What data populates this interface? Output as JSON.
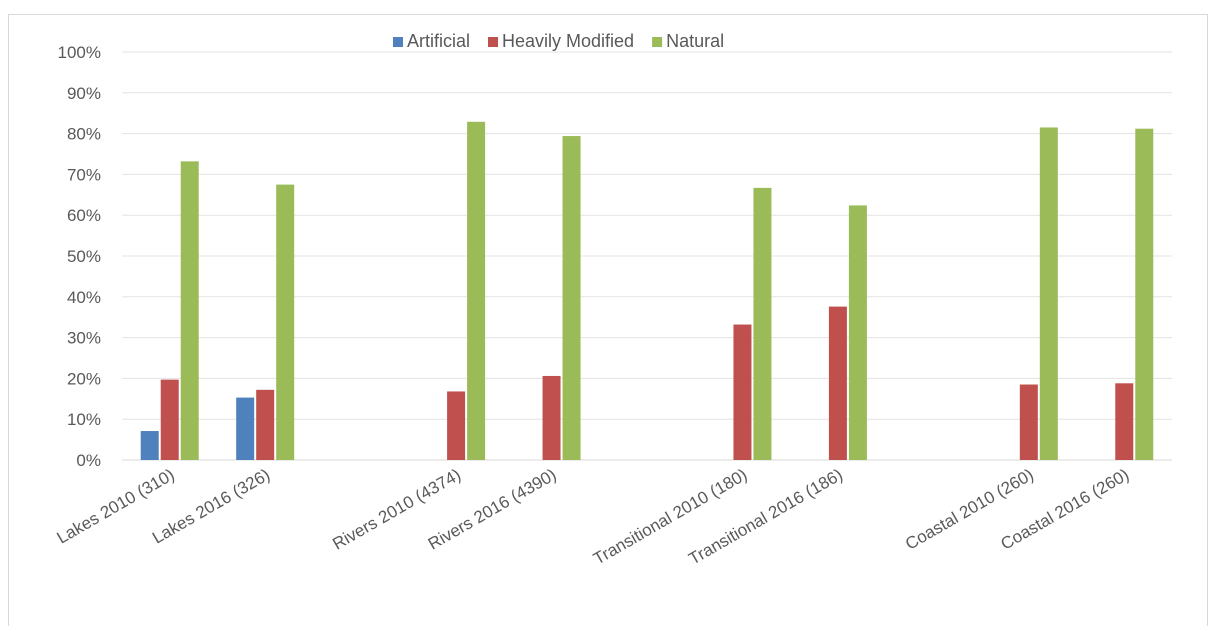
{
  "chart_data": {
    "type": "bar",
    "categories": [
      "Lakes 2010 (310)",
      "Lakes 2016 (326)",
      "",
      "Rivers 2010 (4374)",
      "Rivers 2016 (4390)",
      "",
      "Transitional 2010 (180)",
      "Transitional 2016 (186)",
      "",
      "Coastal 2010 (260)",
      "Coastal 2016 (260)"
    ],
    "series": [
      {
        "name": "Artificial",
        "color": "#4f81bd",
        "values": [
          7.1,
          15.3,
          null,
          null,
          null,
          null,
          null,
          null,
          null,
          null,
          null
        ]
      },
      {
        "name": "Heavily Modified",
        "color": "#c0504d",
        "values": [
          19.7,
          17.2,
          null,
          16.8,
          20.6,
          null,
          33.2,
          37.6,
          null,
          18.5,
          18.8
        ]
      },
      {
        "name": "Natural",
        "color": "#9bbb59",
        "values": [
          73.2,
          67.5,
          null,
          82.9,
          79.4,
          null,
          66.7,
          62.4,
          null,
          81.5,
          81.2
        ]
      }
    ],
    "ylim": [
      0,
      100
    ],
    "y_ticks": [
      "0%",
      "10%",
      "20%",
      "30%",
      "40%",
      "50%",
      "60%",
      "70%",
      "80%",
      "90%",
      "100%"
    ],
    "grid": true,
    "legend_position": "top",
    "xlabel": "",
    "ylabel": "",
    "title": ""
  }
}
